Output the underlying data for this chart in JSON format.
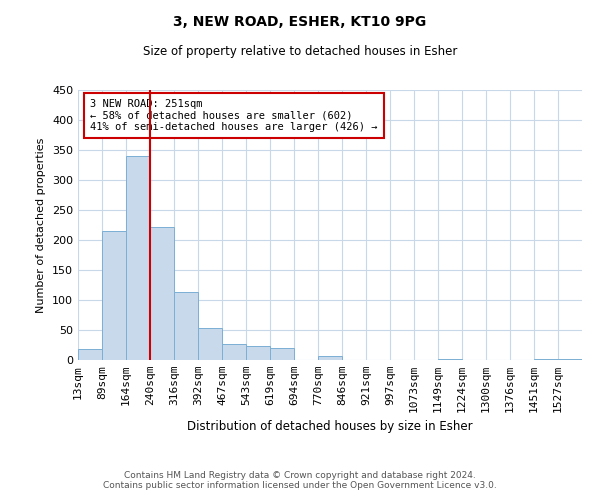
{
  "title": "3, NEW ROAD, ESHER, KT10 9PG",
  "subtitle": "Size of property relative to detached houses in Esher",
  "xlabel": "Distribution of detached houses by size in Esher",
  "ylabel": "Number of detached properties",
  "bin_labels": [
    "13sqm",
    "89sqm",
    "164sqm",
    "240sqm",
    "316sqm",
    "392sqm",
    "467sqm",
    "543sqm",
    "619sqm",
    "694sqm",
    "770sqm",
    "846sqm",
    "921sqm",
    "997sqm",
    "1073sqm",
    "1149sqm",
    "1224sqm",
    "1300sqm",
    "1376sqm",
    "1451sqm",
    "1527sqm"
  ],
  "bar_values": [
    18,
    215,
    340,
    222,
    113,
    53,
    26,
    24,
    20,
    0,
    7,
    0,
    0,
    0,
    0,
    2,
    0,
    0,
    0,
    1,
    1
  ],
  "bar_color": "#c9d9ec",
  "bar_edge_color": "#7bafd4",
  "vline_x": 3,
  "vline_color": "#cc0000",
  "ylim": [
    0,
    450
  ],
  "annotation_text": "3 NEW ROAD: 251sqm\n← 58% of detached houses are smaller (602)\n41% of semi-detached houses are larger (426) →",
  "annotation_box_color": "#ffffff",
  "annotation_box_edge_color": "#cc0000",
  "footer_text": "Contains HM Land Registry data © Crown copyright and database right 2024.\nContains public sector information licensed under the Open Government Licence v3.0.",
  "background_color": "#ffffff",
  "grid_color": "#c8d8e8"
}
